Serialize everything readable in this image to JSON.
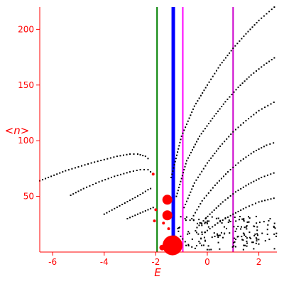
{
  "chart_data": {
    "type": "scatter",
    "title": "",
    "xlabel": "E",
    "ylabel": "<n>",
    "xlim": [
      -6.5,
      2.7
    ],
    "ylim": [
      0,
      220
    ],
    "xticks": [
      -6,
      -4,
      -2,
      0,
      2
    ],
    "yticks": [
      50,
      100,
      150,
      200
    ],
    "grid": false,
    "axis_color": "#ff0000",
    "point_color": "#000000",
    "marker_color": "#ff0000",
    "series": [
      {
        "points": [
          [
            -6.5,
            64
          ],
          [
            -5.5,
            73
          ],
          [
            -4.5,
            80
          ],
          [
            -4.0,
            83
          ],
          [
            -3.5,
            86
          ],
          [
            -3.0,
            88
          ],
          [
            -2.7,
            88
          ],
          [
            -2.4,
            86
          ],
          [
            -2.2,
            82
          ]
        ]
      },
      {
        "points": [
          [
            -5.3,
            51
          ],
          [
            -4.8,
            57
          ],
          [
            -4.2,
            63
          ],
          [
            -3.6,
            68
          ],
          [
            -3.0,
            72
          ],
          [
            -2.6,
            74
          ],
          [
            -2.3,
            74
          ],
          [
            -2.1,
            70
          ]
        ]
      },
      {
        "points": [
          [
            -4.0,
            34
          ],
          [
            -3.6,
            39
          ],
          [
            -3.2,
            44
          ],
          [
            -2.8,
            49
          ],
          [
            -2.5,
            53
          ],
          [
            -2.3,
            56
          ],
          [
            -2.1,
            58
          ]
        ]
      },
      {
        "points": [
          [
            -3.1,
            30
          ],
          [
            -2.8,
            33
          ],
          [
            -2.5,
            36
          ],
          [
            -2.2,
            39
          ],
          [
            -2.0,
            41
          ]
        ]
      },
      {
        "points": [
          [
            -1.4,
            67
          ],
          [
            -1.0,
            104
          ],
          [
            -0.5,
            131
          ],
          [
            0.0,
            150
          ],
          [
            0.5,
            168
          ],
          [
            1.0,
            183
          ],
          [
            1.5,
            196
          ],
          [
            2.0,
            208
          ],
          [
            2.7,
            222
          ]
        ]
      },
      {
        "points": [
          [
            -1.2,
            50
          ],
          [
            -0.8,
            82
          ],
          [
            -0.3,
            104
          ],
          [
            0.2,
            120
          ],
          [
            0.7,
            135
          ],
          [
            1.2,
            148
          ],
          [
            1.7,
            159
          ],
          [
            2.2,
            168
          ],
          [
            2.7,
            176
          ]
        ]
      },
      {
        "points": [
          [
            -0.9,
            40
          ],
          [
            -0.5,
            62
          ],
          [
            0.0,
            80
          ],
          [
            0.5,
            95
          ],
          [
            1.0,
            108
          ],
          [
            1.5,
            118
          ],
          [
            2.0,
            127
          ],
          [
            2.7,
            136
          ]
        ]
      },
      {
        "points": [
          [
            -0.6,
            30
          ],
          [
            -0.2,
            46
          ],
          [
            0.3,
            60
          ],
          [
            0.8,
            72
          ],
          [
            1.3,
            82
          ],
          [
            1.8,
            90
          ],
          [
            2.3,
            96
          ],
          [
            2.7,
            99
          ]
        ]
      },
      {
        "points": [
          [
            -0.4,
            22
          ],
          [
            0.1,
            34
          ],
          [
            0.6,
            45
          ],
          [
            1.1,
            54
          ],
          [
            1.6,
            61
          ],
          [
            2.1,
            67
          ],
          [
            2.7,
            72
          ]
        ]
      },
      {
        "points": [
          [
            -0.2,
            16
          ],
          [
            0.4,
            26
          ],
          [
            1.0,
            34
          ],
          [
            1.5,
            40
          ],
          [
            2.0,
            45
          ],
          [
            2.7,
            49
          ]
        ]
      }
    ],
    "cluster": {
      "x_range": [
        -1.2,
        2.7
      ],
      "y_range": [
        2,
        32
      ],
      "count": 170
    },
    "vertical_lines": [
      {
        "x": -1.95,
        "color": "#008000"
      },
      {
        "x": -1.32,
        "color": "#0000ff"
      },
      {
        "x": -0.95,
        "color": "#ff00ff"
      },
      {
        "x": 1.0,
        "color": "#cc00cc"
      }
    ],
    "markers": [
      {
        "x": -2.1,
        "y": 70,
        "size": 2
      },
      {
        "x": -2.0,
        "y": 38,
        "size": 2
      },
      {
        "x": -2.05,
        "y": 28,
        "size": 2
      },
      {
        "x": -1.7,
        "y": 26,
        "size": 2
      },
      {
        "x": -1.55,
        "y": 47,
        "size": 7
      },
      {
        "x": -1.55,
        "y": 33,
        "size": 7
      },
      {
        "x": -1.75,
        "y": 4,
        "size": 4
      },
      {
        "x": -1.35,
        "y": 6,
        "size": 14
      },
      {
        "x": -1.25,
        "y": 13,
        "size": 3
      },
      {
        "x": -1.05,
        "y": 8,
        "size": 2
      },
      {
        "x": -1.5,
        "y": 21,
        "size": 2
      }
    ]
  }
}
